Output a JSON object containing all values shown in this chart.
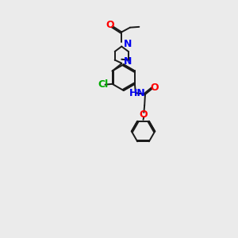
{
  "background_color": "#ebebeb",
  "bond_color": "#1a1a1a",
  "atom_colors": {
    "O": "#ff0000",
    "N": "#0000ee",
    "Cl": "#00aa00",
    "C": "#1a1a1a"
  },
  "figsize": [
    3.0,
    3.0
  ],
  "dpi": 100
}
